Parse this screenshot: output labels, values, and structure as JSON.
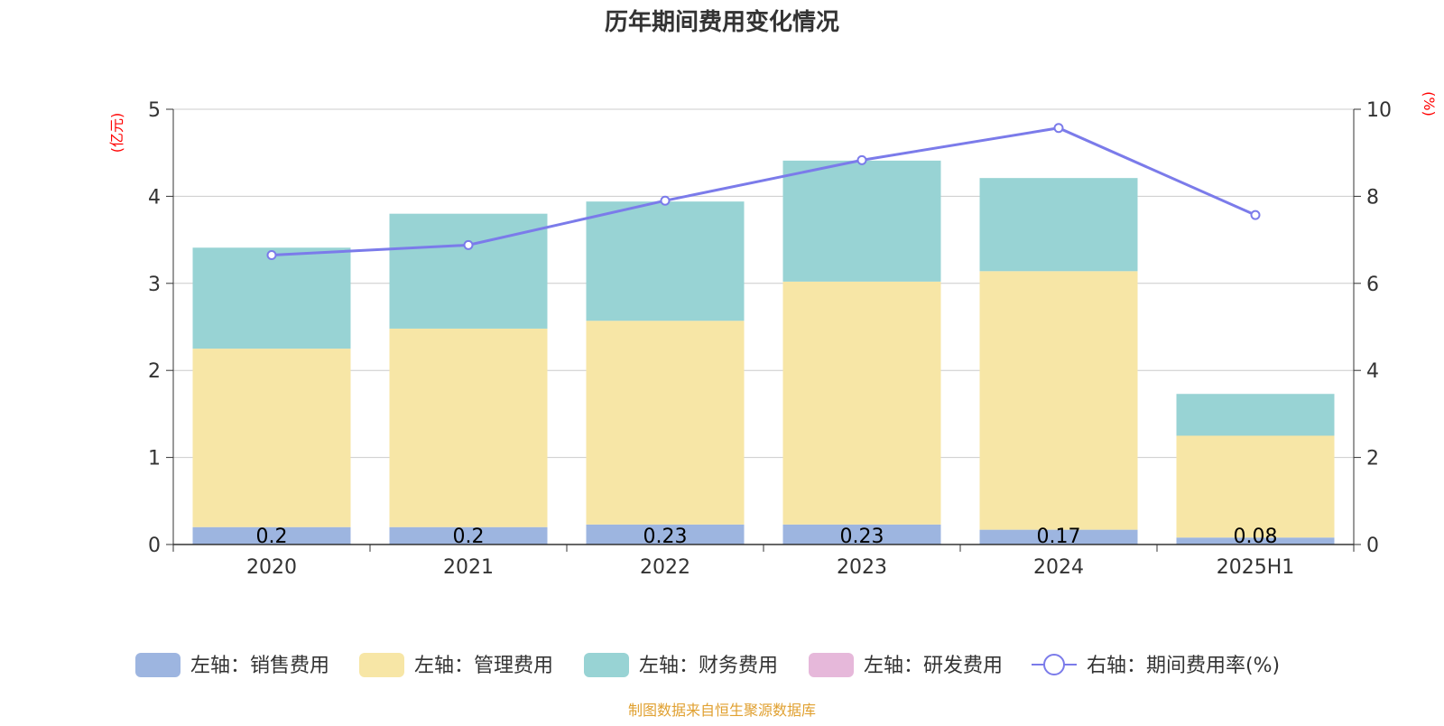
{
  "chart_data": {
    "type": "bar",
    "title": "历年期间费用变化情况",
    "left_axis_unit": "(亿元)",
    "right_axis_unit": "(%)",
    "categories": [
      "2020",
      "2021",
      "2022",
      "2023",
      "2024",
      "2025H1"
    ],
    "ylim_left": [
      0,
      5
    ],
    "left_ticks": [
      "0",
      "1",
      "2",
      "3",
      "4",
      "5"
    ],
    "ylim_right": [
      0,
      10
    ],
    "right_ticks": [
      "0",
      "2",
      "4",
      "6",
      "8",
      "10"
    ],
    "grid": true,
    "stacked": true,
    "series": [
      {
        "name": "左轴：销售费用",
        "type": "bar",
        "axis": "left",
        "color": "#9db5e0",
        "values": [
          0.2,
          0.2,
          0.23,
          0.23,
          0.17,
          0.08
        ],
        "labels": [
          "0.2",
          "0.2",
          "0.23",
          "0.23",
          "0.17",
          "0.08"
        ]
      },
      {
        "name": "左轴：管理费用",
        "type": "bar",
        "axis": "left",
        "color": "#f7e6a6",
        "values": [
          2.05,
          2.28,
          2.34,
          2.79,
          2.97,
          1.17
        ]
      },
      {
        "name": "左轴：财务费用",
        "type": "bar",
        "axis": "left",
        "color": "#98d3d4",
        "values": [
          1.16,
          1.32,
          1.37,
          1.39,
          1.07,
          0.48
        ]
      },
      {
        "name": "左轴：研发费用",
        "type": "bar",
        "axis": "left",
        "color": "#e6b8da",
        "values": [
          0,
          0,
          0,
          0,
          0,
          0
        ]
      },
      {
        "name": "右轴：期间费用率(%)",
        "type": "line",
        "axis": "right",
        "color": "#7b7bea",
        "values": [
          6.65,
          6.88,
          7.9,
          8.83,
          9.57,
          7.57
        ]
      }
    ],
    "legend_position": "bottom",
    "source": "制图数据来自恒生聚源数据库"
  }
}
